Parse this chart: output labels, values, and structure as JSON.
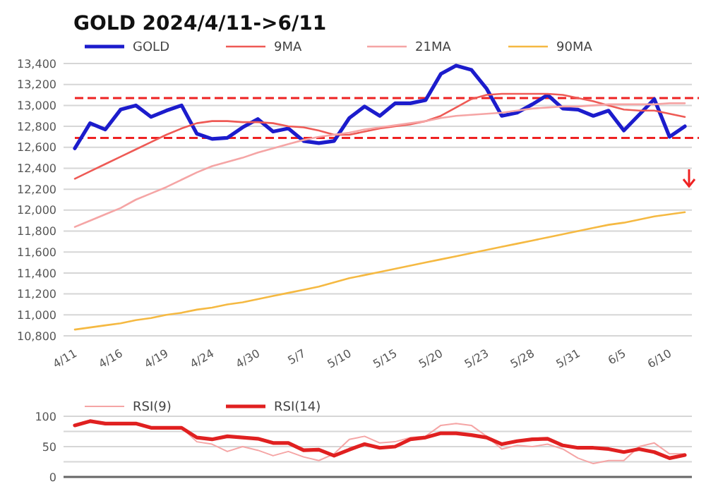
{
  "chart_data": [
    {
      "type": "line",
      "title": "GOLD 2024/4/11->6/11",
      "categories": [
        "4/11",
        null,
        null,
        "4/16",
        null,
        null,
        "4/19",
        null,
        null,
        "4/24",
        null,
        null,
        "4/30",
        null,
        null,
        "5/7",
        null,
        null,
        "5/10",
        null,
        null,
        "5/15",
        null,
        null,
        "5/20",
        null,
        null,
        "5/23",
        null,
        null,
        "5/28",
        null,
        null,
        "5/31",
        null,
        null,
        "6/5",
        null,
        null,
        "6/10",
        null
      ],
      "series": [
        {
          "name": "GOLD",
          "color": "#1c1ccc",
          "values": [
            12590,
            12830,
            12770,
            12960,
            13000,
            12890,
            12950,
            13000,
            12730,
            12680,
            12690,
            12790,
            12870,
            12750,
            12780,
            12660,
            12640,
            12660,
            12880,
            12990,
            12900,
            13020,
            13020,
            13050,
            13300,
            13380,
            13340,
            13160,
            12900,
            12930,
            13010,
            13100,
            12970,
            12960,
            12900,
            12950,
            12760,
            12910,
            13060,
            12700,
            12800
          ]
        },
        {
          "name": "9MA",
          "color": "#ee5a55",
          "values": [
            12300,
            12370,
            12440,
            12510,
            12580,
            12650,
            12720,
            12780,
            12830,
            12850,
            12850,
            12840,
            12840,
            12830,
            12800,
            12790,
            12760,
            12720,
            12720,
            12750,
            12780,
            12800,
            12820,
            12850,
            12900,
            12980,
            13060,
            13100,
            13110,
            13110,
            13110,
            13110,
            13100,
            13070,
            13040,
            13000,
            12960,
            12950,
            12950,
            12920,
            12890
          ]
        },
        {
          "name": "21MA",
          "color": "#f5a5a5",
          "values": [
            11840,
            11900,
            11960,
            12020,
            12100,
            12160,
            12220,
            12290,
            12360,
            12420,
            12460,
            12500,
            12550,
            12590,
            12630,
            12670,
            12700,
            12720,
            12740,
            12770,
            12790,
            12810,
            12830,
            12850,
            12880,
            12900,
            12910,
            12920,
            12930,
            12950,
            12970,
            12980,
            12990,
            12990,
            13000,
            13010,
            13010,
            13010,
            13010,
            13020,
            13020
          ]
        },
        {
          "name": "90MA",
          "color": "#f5b942",
          "values": [
            10860,
            10880,
            10900,
            10920,
            10950,
            10970,
            11000,
            11020,
            11050,
            11070,
            11100,
            11120,
            11150,
            11180,
            11210,
            11240,
            11270,
            11310,
            11350,
            11380,
            11410,
            11440,
            11470,
            11500,
            11530,
            11560,
            11590,
            11620,
            11650,
            11680,
            11710,
            11740,
            11770,
            11800,
            11830,
            11860,
            11880,
            11910,
            11940,
            11960,
            11980
          ]
        }
      ],
      "ylim": [
        10800,
        13400
      ],
      "yticks": [
        {
          "value": 10800,
          "label": "10,800"
        },
        {
          "value": 11000,
          "label": "11,000"
        },
        {
          "value": 11200,
          "label": "11,200"
        },
        {
          "value": 11400,
          "label": "11,400"
        },
        {
          "value": 11600,
          "label": "11,600"
        },
        {
          "value": 11800,
          "label": "11,800"
        },
        {
          "value": 12000,
          "label": "12,000"
        },
        {
          "value": 12200,
          "label": "12,200"
        },
        {
          "value": 12400,
          "label": "12,400"
        },
        {
          "value": 12600,
          "label": "12,600"
        },
        {
          "value": 12800,
          "label": "12,800"
        },
        {
          "value": 13000,
          "label": "13,000"
        },
        {
          "value": 13200,
          "label": "13,200"
        },
        {
          "value": 13400,
          "label": "13,400"
        }
      ],
      "ref_lines": [
        {
          "axis": "y",
          "value": 13070,
          "color": "#ee2222",
          "line_style": "dashed"
        },
        {
          "axis": "y",
          "value": 12690,
          "color": "#ee2222",
          "line_style": "dashed"
        }
      ],
      "grid": "y",
      "legend": "top",
      "marker": "none"
    },
    {
      "type": "line",
      "categories": [
        null,
        null,
        null,
        null,
        null,
        null,
        null,
        null,
        null,
        null,
        null,
        null,
        null,
        null,
        null,
        null,
        null,
        null,
        null,
        null,
        null,
        null,
        null,
        null,
        null,
        null,
        null,
        null,
        null,
        null,
        null,
        null,
        null,
        null,
        null,
        null,
        null,
        null,
        null,
        null,
        null
      ],
      "series": [
        {
          "name": "RSI(9)",
          "color": "#f5a5a5",
          "values": [
            85,
            92,
            87,
            87,
            87,
            81,
            81,
            81,
            58,
            54,
            42,
            50,
            44,
            35,
            42,
            33,
            27,
            38,
            62,
            67,
            56,
            58,
            65,
            67,
            85,
            88,
            85,
            67,
            46,
            52,
            50,
            54,
            46,
            31,
            22,
            27,
            27,
            50,
            56,
            38,
            38
          ]
        },
        {
          "name": "RSI(14)",
          "color": "#e02020",
          "values": [
            85,
            92,
            88,
            88,
            88,
            81,
            81,
            81,
            65,
            62,
            67,
            65,
            63,
            56,
            56,
            44,
            45,
            35,
            45,
            54,
            48,
            50,
            62,
            65,
            72,
            72,
            69,
            65,
            54,
            59,
            62,
            63,
            52,
            48,
            48,
            46,
            41,
            46,
            41,
            31,
            36
          ]
        }
      ],
      "ylim": [
        0,
        100
      ],
      "yticks": [
        0,
        {
          "value": 25,
          "label": null
        },
        50,
        {
          "value": 75,
          "label": null
        },
        100
      ],
      "grid": "y",
      "legend": "top",
      "marker": "none",
      "tick_labels": "y"
    }
  ]
}
